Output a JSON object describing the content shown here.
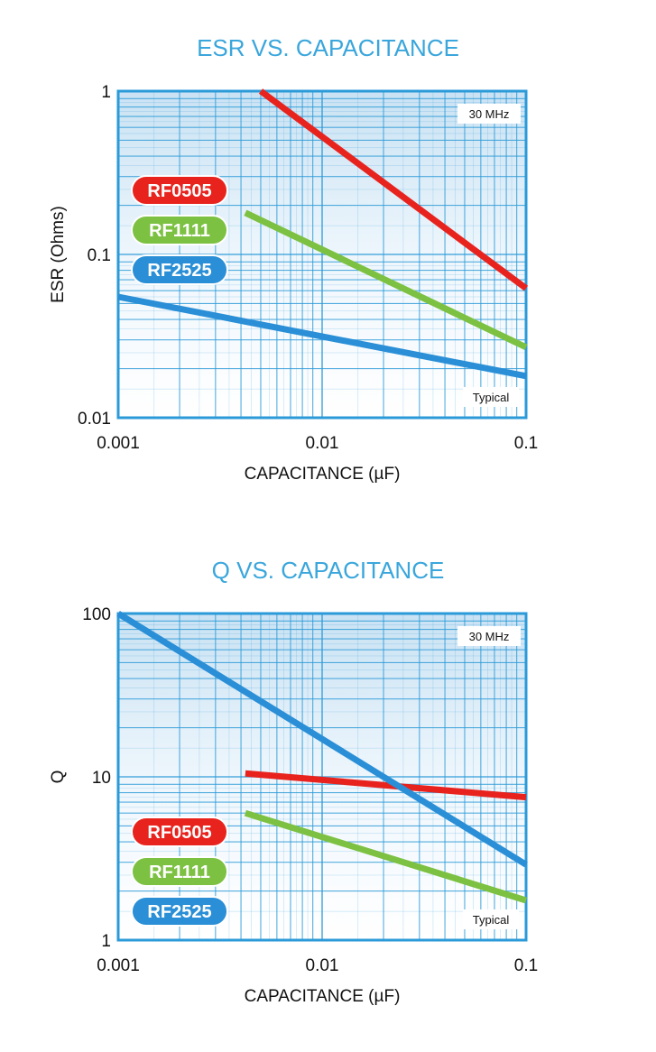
{
  "colors": {
    "title": "#3aa6dc",
    "frame": "#2b9ad8",
    "RF0505": "#e8231e",
    "RF1111": "#7cc142",
    "RF2525": "#2a8fd6"
  },
  "chart_data": [
    {
      "type": "line",
      "title": "ESR VS. CAPACITANCE",
      "xlabel": "CAPACITANCE (µF)",
      "ylabel": "ESR (Ohms)",
      "xscale": "log",
      "yscale": "log",
      "xlim": [
        0.001,
        0.1
      ],
      "ylim": [
        0.01,
        1
      ],
      "xticks": [
        "0.001",
        "0.01",
        "0.1"
      ],
      "yticks": [
        "1",
        "0.1",
        "0.01"
      ],
      "grid": true,
      "legend_position": "left",
      "annotations": [
        "30 MHz",
        "Typical"
      ],
      "series": [
        {
          "name": "RF0505",
          "x": [
            0.005,
            0.1
          ],
          "y": [
            1.0,
            0.062
          ]
        },
        {
          "name": "RF1111",
          "x": [
            0.0042,
            0.1
          ],
          "y": [
            0.18,
            0.027
          ]
        },
        {
          "name": "RF2525",
          "x": [
            0.001,
            0.1
          ],
          "y": [
            0.055,
            0.018
          ]
        }
      ]
    },
    {
      "type": "line",
      "title": "Q VS. CAPACITANCE",
      "xlabel": "CAPACITANCE (µF)",
      "ylabel": "Q",
      "xscale": "log",
      "yscale": "log",
      "xlim": [
        0.001,
        0.1
      ],
      "ylim": [
        1,
        100
      ],
      "xticks": [
        "0.001",
        "0.01",
        "0.1"
      ],
      "yticks": [
        "100",
        "10",
        "1"
      ],
      "grid": true,
      "legend_position": "bottom-left",
      "annotations": [
        "30 MHz",
        "Typical"
      ],
      "series": [
        {
          "name": "RF0505",
          "x": [
            0.0042,
            0.1
          ],
          "y": [
            10.5,
            7.5
          ]
        },
        {
          "name": "RF1111",
          "x": [
            0.0042,
            0.1
          ],
          "y": [
            6.0,
            1.75
          ]
        },
        {
          "name": "RF2525",
          "x": [
            0.001,
            0.1
          ],
          "y": [
            100,
            2.9
          ]
        }
      ]
    }
  ]
}
